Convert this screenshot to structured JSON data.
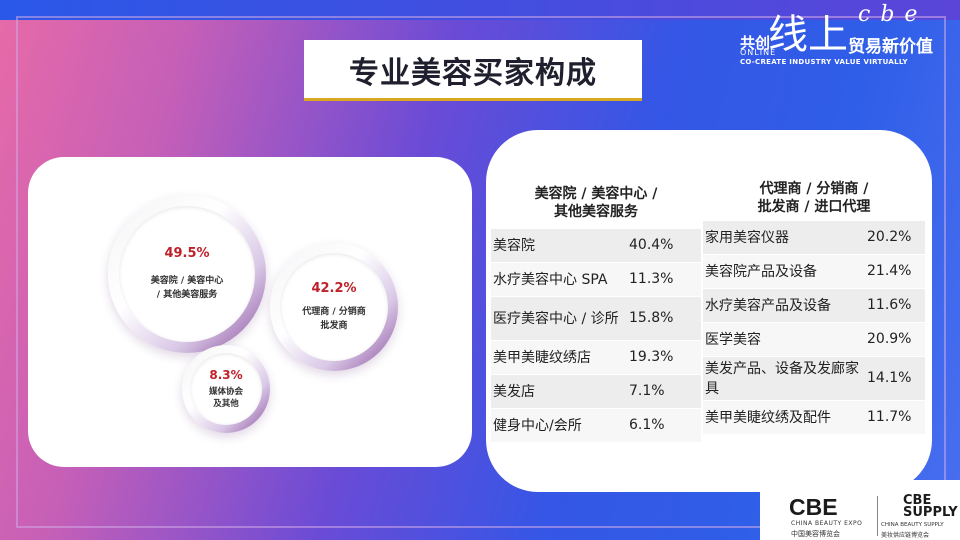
{
  "title": "专业美容买家构成",
  "brand": {
    "gongchuang": "共创",
    "online": "ONLINE",
    "xianshang": "线上",
    "cbe_letters": "cbe",
    "maoyi": "贸易新价值",
    "slogan": "CO-CREATE INDUSTRY VALUE VIRTUALLY",
    "cbe_logo": "CBE",
    "cbe_expo_en": "CHINA BEAUTY EXPO",
    "cbe_expo_cn": "中国美容博览会",
    "supply_logo_line1": "CBE",
    "supply_logo_line2": "SUPPLY",
    "supply_en": "CHINA BEAUTY SUPPLY",
    "supply_cn": "美妆供应链博览会"
  },
  "circles": [
    {
      "percent": "49.5%",
      "label_line1": "美容院 / 美容中心",
      "label_line2": "/ 其他美容服务"
    },
    {
      "percent": "42.2%",
      "label_line1": "代理商 / 分销商",
      "label_line2": "批发商"
    },
    {
      "percent": "8.3%",
      "label_line1": "媒体协会",
      "label_line2": "及其他"
    }
  ],
  "table_left": {
    "header_line1": "美容院 / 美容中心 /",
    "header_line2": "其他美容服务",
    "rows": [
      {
        "name": "美容院",
        "value": "40.4%"
      },
      {
        "name": "水疗美容中心 SPA",
        "value": "11.3%"
      },
      {
        "name": "医疗美容中心 / 诊所",
        "value": "15.8%"
      },
      {
        "name": "美甲美睫纹绣店",
        "value": "19.3%"
      },
      {
        "name": "美发店",
        "value": "7.1%"
      },
      {
        "name": "健身中心/会所",
        "value": "6.1%"
      }
    ]
  },
  "table_right": {
    "header_line1": "代理商 / 分销商 /",
    "header_line2": "批发商 / 进口代理",
    "rows": [
      {
        "name": "家用美容仪器",
        "value": "20.2%"
      },
      {
        "name": "美容院产品及设备",
        "value": "21.4%"
      },
      {
        "name": "水疗美容产品及设备",
        "value": "11.6%"
      },
      {
        "name": "医学美容",
        "value": "20.9%"
      },
      {
        "name": "美发产品、设备及发廊家具",
        "value": "14.1%"
      },
      {
        "name": "美甲美睫纹绣及配件",
        "value": "11.7%"
      }
    ]
  }
}
